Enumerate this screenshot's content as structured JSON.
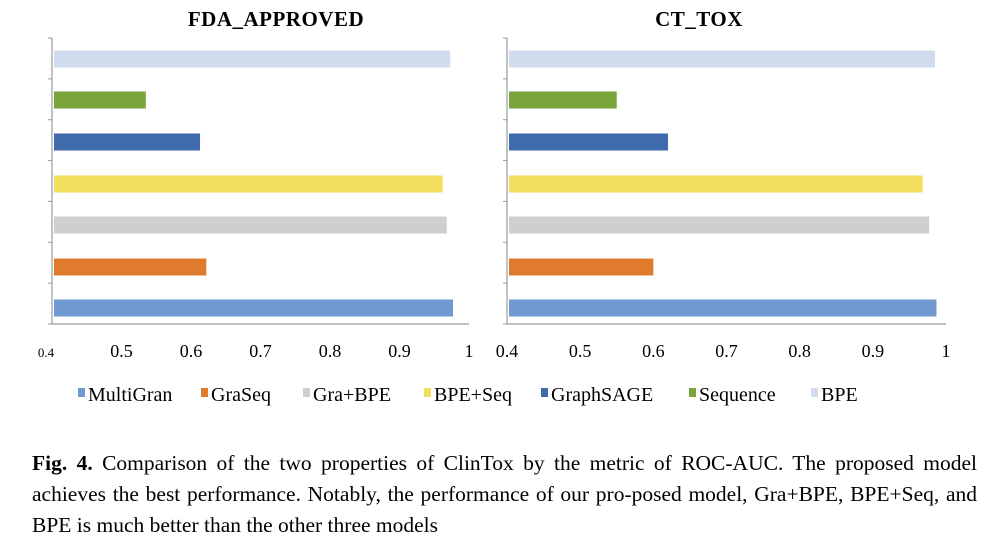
{
  "colors": {
    "MultiGran": "#7099cf",
    "GraSeq": "#e07b2e",
    "Gra+BPE": "#cfcfcf",
    "BPE+Seq": "#f3de5e",
    "GraphSAGE": "#3f6aab",
    "Sequence": "#7aa53a",
    "BPE": "#d1ddef",
    "axis": "#9a9a9a"
  },
  "legend": [
    "MultiGran",
    "GraSeq",
    "Gra+BPE",
    "BPE+Seq",
    "GraphSAGE",
    "Sequence",
    "BPE"
  ],
  "chart_data": [
    {
      "type": "bar",
      "orientation": "horizontal",
      "title": "FDA_APPROVED",
      "xlim": [
        0.4,
        1
      ],
      "xticks": [
        "0.4",
        "0.5",
        "0.6",
        "0.7",
        "0.8",
        "0.9",
        "1"
      ],
      "series": [
        {
          "name": "MultiGran",
          "value": 0.977
        },
        {
          "name": "GraSeq",
          "value": 0.622
        },
        {
          "name": "Gra+BPE",
          "value": 0.968
        },
        {
          "name": "BPE+Seq",
          "value": 0.962
        },
        {
          "name": "GraphSAGE",
          "value": 0.613
        },
        {
          "name": "Sequence",
          "value": 0.535
        },
        {
          "name": "BPE",
          "value": 0.973
        }
      ],
      "legend_position": "bottom"
    },
    {
      "type": "bar",
      "orientation": "horizontal",
      "title": "CT_TOX",
      "xlim": [
        0.4,
        1
      ],
      "xticks": [
        "0.4",
        "0.5",
        "0.6",
        "0.7",
        "0.8",
        "0.9",
        "1"
      ],
      "series": [
        {
          "name": "MultiGran",
          "value": 0.987
        },
        {
          "name": "GraSeq",
          "value": 0.6
        },
        {
          "name": "Gra+BPE",
          "value": 0.977
        },
        {
          "name": "BPE+Seq",
          "value": 0.968
        },
        {
          "name": "GraphSAGE",
          "value": 0.62
        },
        {
          "name": "Sequence",
          "value": 0.55
        },
        {
          "name": "BPE",
          "value": 0.985
        }
      ],
      "legend_position": "bottom"
    }
  ],
  "caption": {
    "label": "Fig. 4.",
    "text": " Comparison of the two properties of ClinTox by the metric of ROC-AUC. The proposed model achieves the best performance. Notably, the performance of our pro-posed model, Gra+BPE, BPE+Seq, and BPE is much better than the other three models"
  }
}
